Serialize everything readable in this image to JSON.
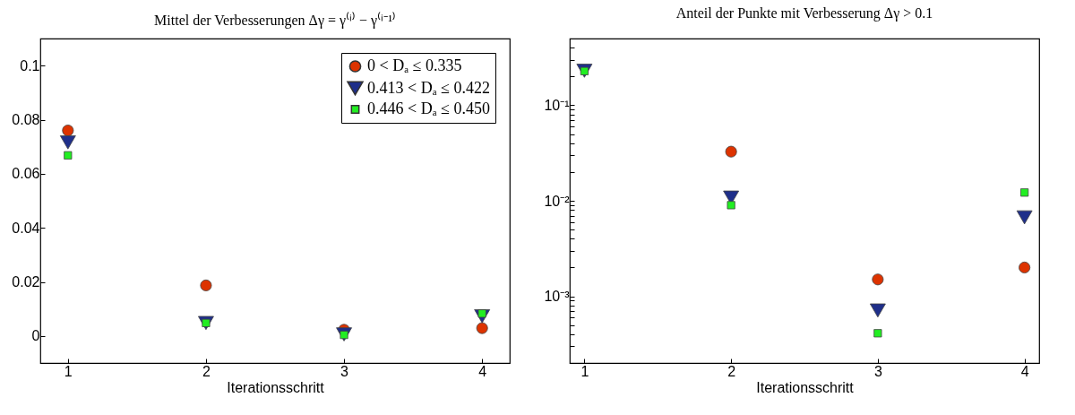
{
  "chart_data": [
    {
      "type": "scatter",
      "title": "Mittel der Verbesserungen Δγ = γ⁽ⁱ⁾ − γ⁽ⁱ⁻¹⁾",
      "xlabel": "Iterationsschritt",
      "x": [
        1,
        2,
        3,
        4
      ],
      "xlim": [
        0.8,
        4.2
      ],
      "xticks": [
        1,
        2,
        3,
        4
      ],
      "ylim": [
        -0.01,
        0.11
      ],
      "yticks": [
        0,
        0.02,
        0.04,
        0.06,
        0.08,
        0.1
      ],
      "legend": "top right",
      "series": [
        {
          "name": "0 < Dₐ ≤ 0.335",
          "color": "#dd3300",
          "marker": "circle",
          "values": [
            0.076,
            0.0187,
            0.0023,
            0.0029
          ]
        },
        {
          "name": "0.413 < Dₐ ≤ 0.422",
          "color": "#1f2f8a",
          "marker": "triangle",
          "values": [
            0.0716,
            0.0048,
            0.0006,
            0.0073
          ]
        },
        {
          "name": "0.446 < Dₐ ≤ 0.450",
          "color": "#22ee22",
          "marker": "square",
          "values": [
            0.0668,
            0.0048,
            0.0004,
            0.0083
          ]
        }
      ]
    },
    {
      "type": "scatter",
      "title": "Anteil der Punkte mit Verbesserung Δγ > 0.1",
      "xlabel": "Iterationsschritt",
      "x": [
        1,
        2,
        3,
        4
      ],
      "xlim": [
        0.9,
        4.1
      ],
      "xticks": [
        1,
        2,
        3,
        4
      ],
      "log": true,
      "ylim": [
        0.0002,
        0.5
      ],
      "yticks": [
        {
          "value": 0.0003,
          "label": null
        },
        {
          "value": 0.0004,
          "label": null
        },
        {
          "value": 0.0005,
          "label": null
        },
        {
          "value": 0.0006,
          "label": null
        },
        {
          "value": 0.0007,
          "label": null
        },
        {
          "value": 0.0008,
          "label": null
        },
        {
          "value": 0.0009,
          "label": null
        },
        {
          "value": 0.001,
          "label": "10⁻³"
        },
        {
          "value": 0.002,
          "label": null
        },
        {
          "value": 0.003,
          "label": null
        },
        {
          "value": 0.004,
          "label": null
        },
        {
          "value": 0.005,
          "label": null
        },
        {
          "value": 0.006,
          "label": null
        },
        {
          "value": 0.007,
          "label": null
        },
        {
          "value": 0.008,
          "label": null
        },
        {
          "value": 0.009,
          "label": null
        },
        {
          "value": 0.01,
          "label": "10⁻²"
        },
        {
          "value": 0.02,
          "label": null
        },
        {
          "value": 0.03,
          "label": null
        },
        {
          "value": 0.04,
          "label": null
        },
        {
          "value": 0.05,
          "label": null
        },
        {
          "value": 0.06,
          "label": null
        },
        {
          "value": 0.07,
          "label": null
        },
        {
          "value": 0.08,
          "label": null
        },
        {
          "value": 0.09,
          "label": null
        },
        {
          "value": 0.1,
          "label": "10⁻¹"
        },
        {
          "value": 0.2,
          "label": null
        },
        {
          "value": 0.3,
          "label": null
        },
        {
          "value": 0.4,
          "label": null
        },
        {
          "value": 0.5,
          "label": null
        }
      ],
      "series": [
        {
          "color": "#dd3300",
          "marker": "circle",
          "values": [
            null,
            0.0327,
            0.0015,
            0.002
          ]
        },
        {
          "color": "#1f2f8a",
          "marker": "triangle",
          "values": [
            0.23,
            0.0108,
            0.00071,
            0.0067
          ]
        },
        {
          "color": "#22ee22",
          "marker": "square",
          "values": [
            0.228,
            0.009,
            0.00041,
            0.0122
          ]
        }
      ]
    }
  ]
}
